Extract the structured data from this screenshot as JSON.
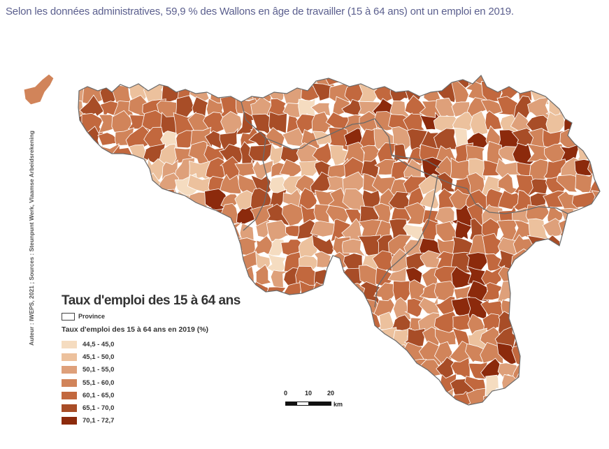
{
  "caption": "Selon les données administratives, 59,9 % des Wallons en âge de travailler (15 à 64 ans) ont un emploi en 2019.",
  "credit": "Auteur : IWEPS, 2021 ; Sources : Steunpunt Werk, Vlaamse Arbeidsrekening",
  "legend": {
    "title": "Taux d'emploi des 15 à 64 ans",
    "province_label": "Province",
    "subtitle": "Taux d'emploi des 15 à 64 ans en 2019 (%)",
    "classes": [
      {
        "label": "44,5 - 45,0",
        "color": "#f5dcc0"
      },
      {
        "label": "45,1 - 50,0",
        "color": "#ecc19d"
      },
      {
        "label": "50,1 - 55,0",
        "color": "#dea07a"
      },
      {
        "label": "55,1 - 60,0",
        "color": "#d1845a"
      },
      {
        "label": "60,1 - 65,0",
        "color": "#c2683e"
      },
      {
        "label": "65,1 - 70,0",
        "color": "#a84d27"
      },
      {
        "label": "70,1 - 72,7",
        "color": "#8c2a0c"
      }
    ]
  },
  "scalebar": {
    "ticks": [
      "0",
      "10",
      "20"
    ],
    "unit": "km"
  },
  "colors": {
    "border": "#ffffff",
    "province_border": "#666666",
    "caption_text": "#5b5f8e"
  }
}
